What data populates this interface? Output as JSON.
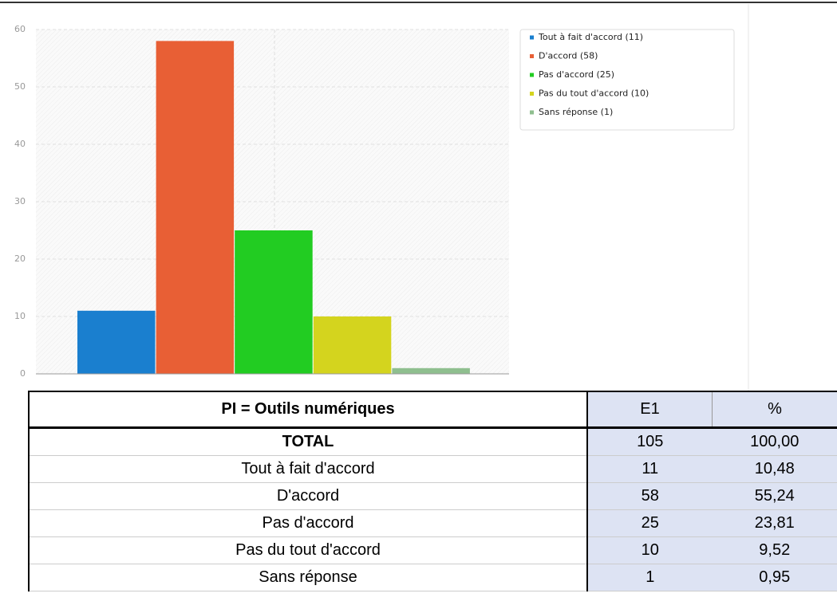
{
  "chart_data": {
    "type": "bar",
    "series": [
      {
        "name": "Tout à fait d'accord (11)",
        "color": "#1a7fcf",
        "values": [
          11
        ]
      },
      {
        "name": "D'accord (58)",
        "color": "#e85f35",
        "values": [
          58
        ]
      },
      {
        "name": "Pas d'accord (25)",
        "color": "#22cc22",
        "values": [
          25
        ]
      },
      {
        "name": "Pas du tout d'accord (10)",
        "color": "#d4d41e",
        "values": [
          10
        ]
      },
      {
        "name": "Sans réponse (1)",
        "color": "#8fbf8f",
        "values": [
          1
        ]
      }
    ],
    "ylim": [
      0,
      60
    ],
    "yticks": [
      0,
      10,
      20,
      30,
      40,
      50,
      60
    ],
    "grid": true,
    "legend": "upper right"
  },
  "table": {
    "header": [
      "PI = Outils numériques",
      "E1",
      "%"
    ],
    "rows": [
      [
        "TOTAL",
        "105",
        "100,00"
      ],
      [
        "Tout à fait d'accord",
        "11",
        "10,48"
      ],
      [
        "D'accord",
        "58",
        "55,24"
      ],
      [
        "Pas d'accord",
        "25",
        "23,81"
      ],
      [
        "Pas du tout d'accord",
        "10",
        "9,52"
      ],
      [
        "Sans réponse",
        "1",
        "0,95"
      ]
    ]
  }
}
